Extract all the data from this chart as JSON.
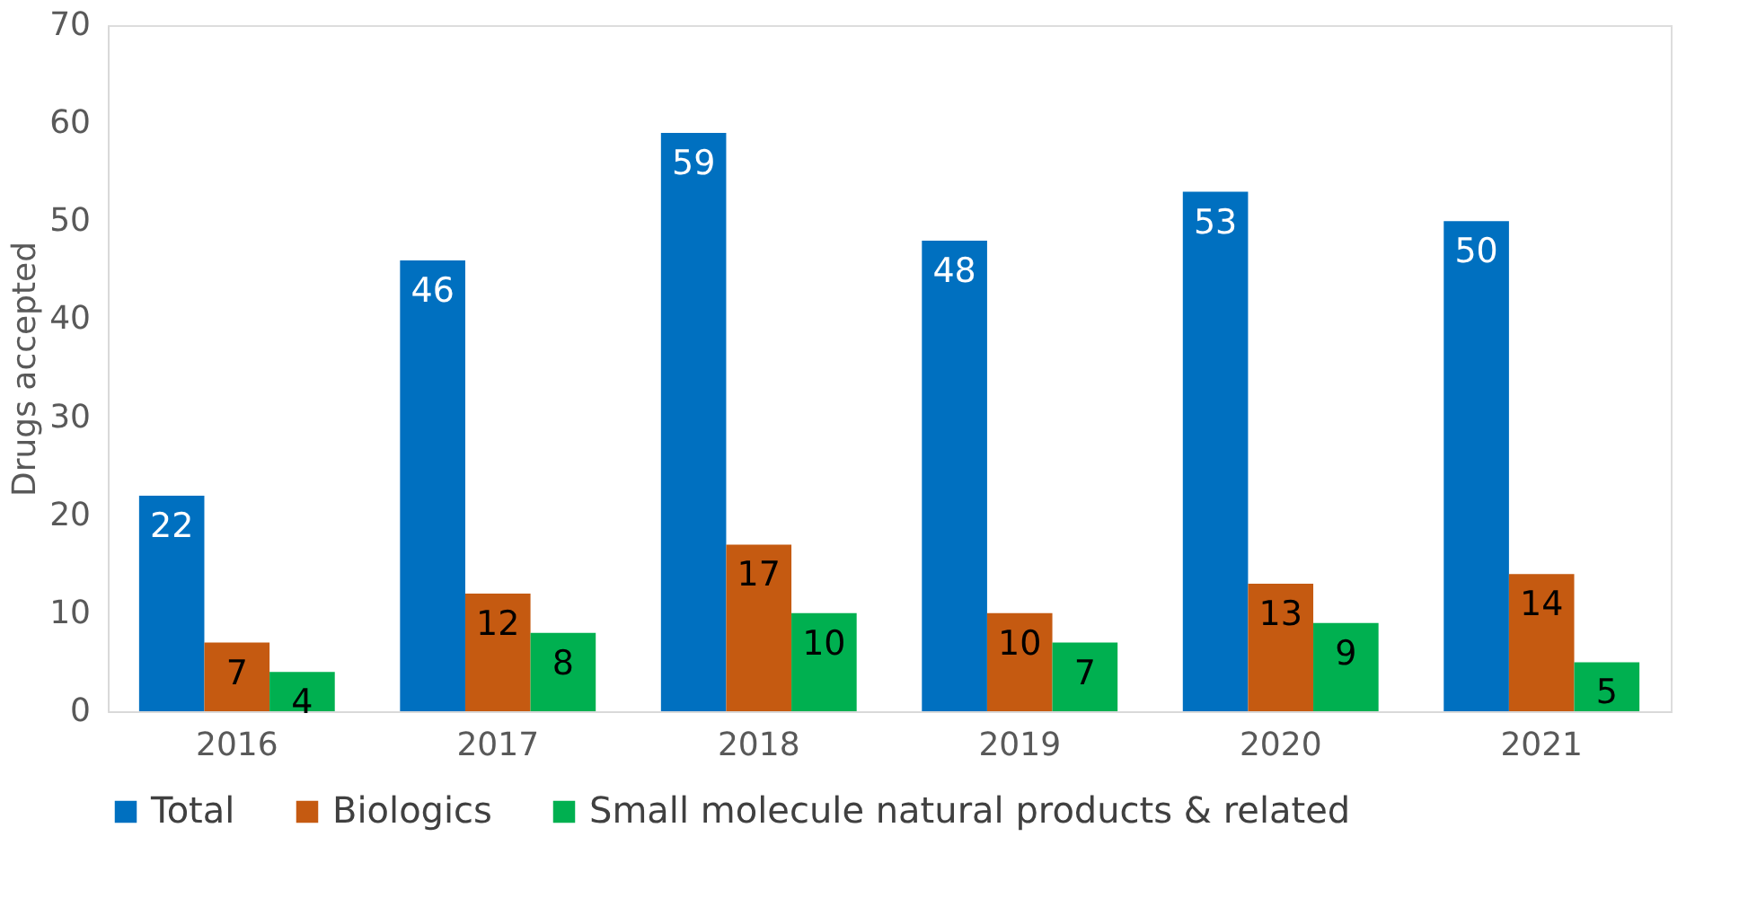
{
  "chart_data": {
    "type": "bar",
    "ylabel": "Drugs accepted",
    "categories": [
      "2016",
      "2017",
      "2018",
      "2019",
      "2020",
      "2021"
    ],
    "series": [
      {
        "name": "Total",
        "color": "#0070c0",
        "values": [
          22,
          46,
          59,
          48,
          53,
          50
        ]
      },
      {
        "name": "Biologics",
        "color": "#c55a11",
        "values": [
          7,
          12,
          17,
          10,
          13,
          14
        ]
      },
      {
        "name": "Small molecule natural products & related",
        "color": "#00b050",
        "values": [
          4,
          8,
          10,
          7,
          9,
          5
        ]
      }
    ],
    "ylim": [
      0,
      70
    ],
    "yticks": [
      0,
      10,
      20,
      30,
      40,
      50,
      60,
      70
    ],
    "grid": false,
    "legend": "bottom",
    "data_labels": true
  }
}
